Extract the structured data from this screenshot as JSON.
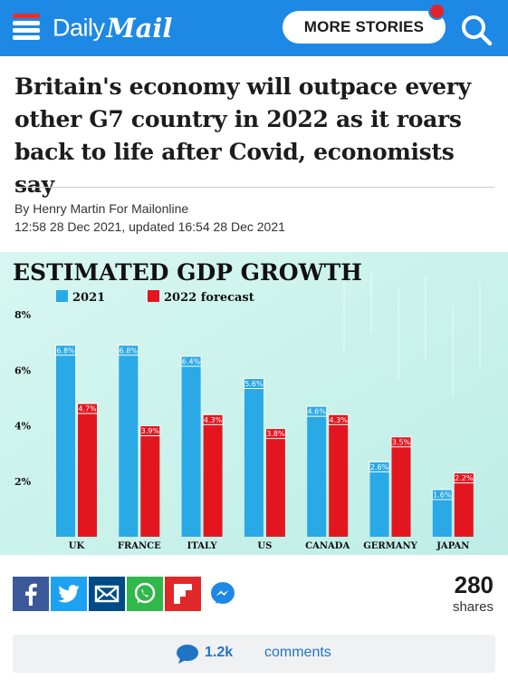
{
  "header": {
    "logo_daily": "Daily",
    "logo_mail": "Mail",
    "more_stories_label": "MORE STORIES",
    "brand_color": "#1e88e5"
  },
  "article": {
    "headline": "Britain's economy will outpace every other G7 country in 2022 as it roars back to life after Covid, economists say",
    "byline": "By Henry Martin For Mailonline",
    "timestamp": "12:58 28 Dec 2021, updated 16:54 28 Dec 2021"
  },
  "chart_data": {
    "type": "bar",
    "title": "ESTIMATED GDP GROWTH",
    "categories": [
      "UK",
      "FRANCE",
      "ITALY",
      "US",
      "CANADA",
      "GERMANY",
      "JAPAN"
    ],
    "series": [
      {
        "name": "2021",
        "color": "#29a9e6",
        "values": [
          6.8,
          6.8,
          6.4,
          5.6,
          4.6,
          2.6,
          1.6
        ],
        "labels": [
          "6.8%",
          "6.8%",
          "6.4%",
          "5.6%",
          "4.6%",
          "2.6%",
          "1.6%"
        ]
      },
      {
        "name": "2022 forecast",
        "color": "#e3161f",
        "values": [
          4.7,
          3.9,
          4.3,
          3.8,
          4.3,
          3.5,
          2.2
        ],
        "labels": [
          "4.7%",
          "3.9%",
          "4.3%",
          "3.8%",
          "4.3%",
          "3.5%",
          "2.2%"
        ]
      }
    ],
    "yticks": [
      "8%",
      "6%",
      "4%",
      "2%"
    ],
    "ytick_values": [
      8,
      6,
      4,
      2
    ],
    "ylim": [
      0,
      8
    ],
    "legend_position": "top-left",
    "background": "#cff3ee"
  },
  "share": {
    "count": "280",
    "label": "shares",
    "buttons": [
      "facebook",
      "twitter",
      "email",
      "whatsapp",
      "flipboard",
      "messenger"
    ]
  },
  "comments": {
    "count": "1.2k",
    "label": "comments"
  }
}
